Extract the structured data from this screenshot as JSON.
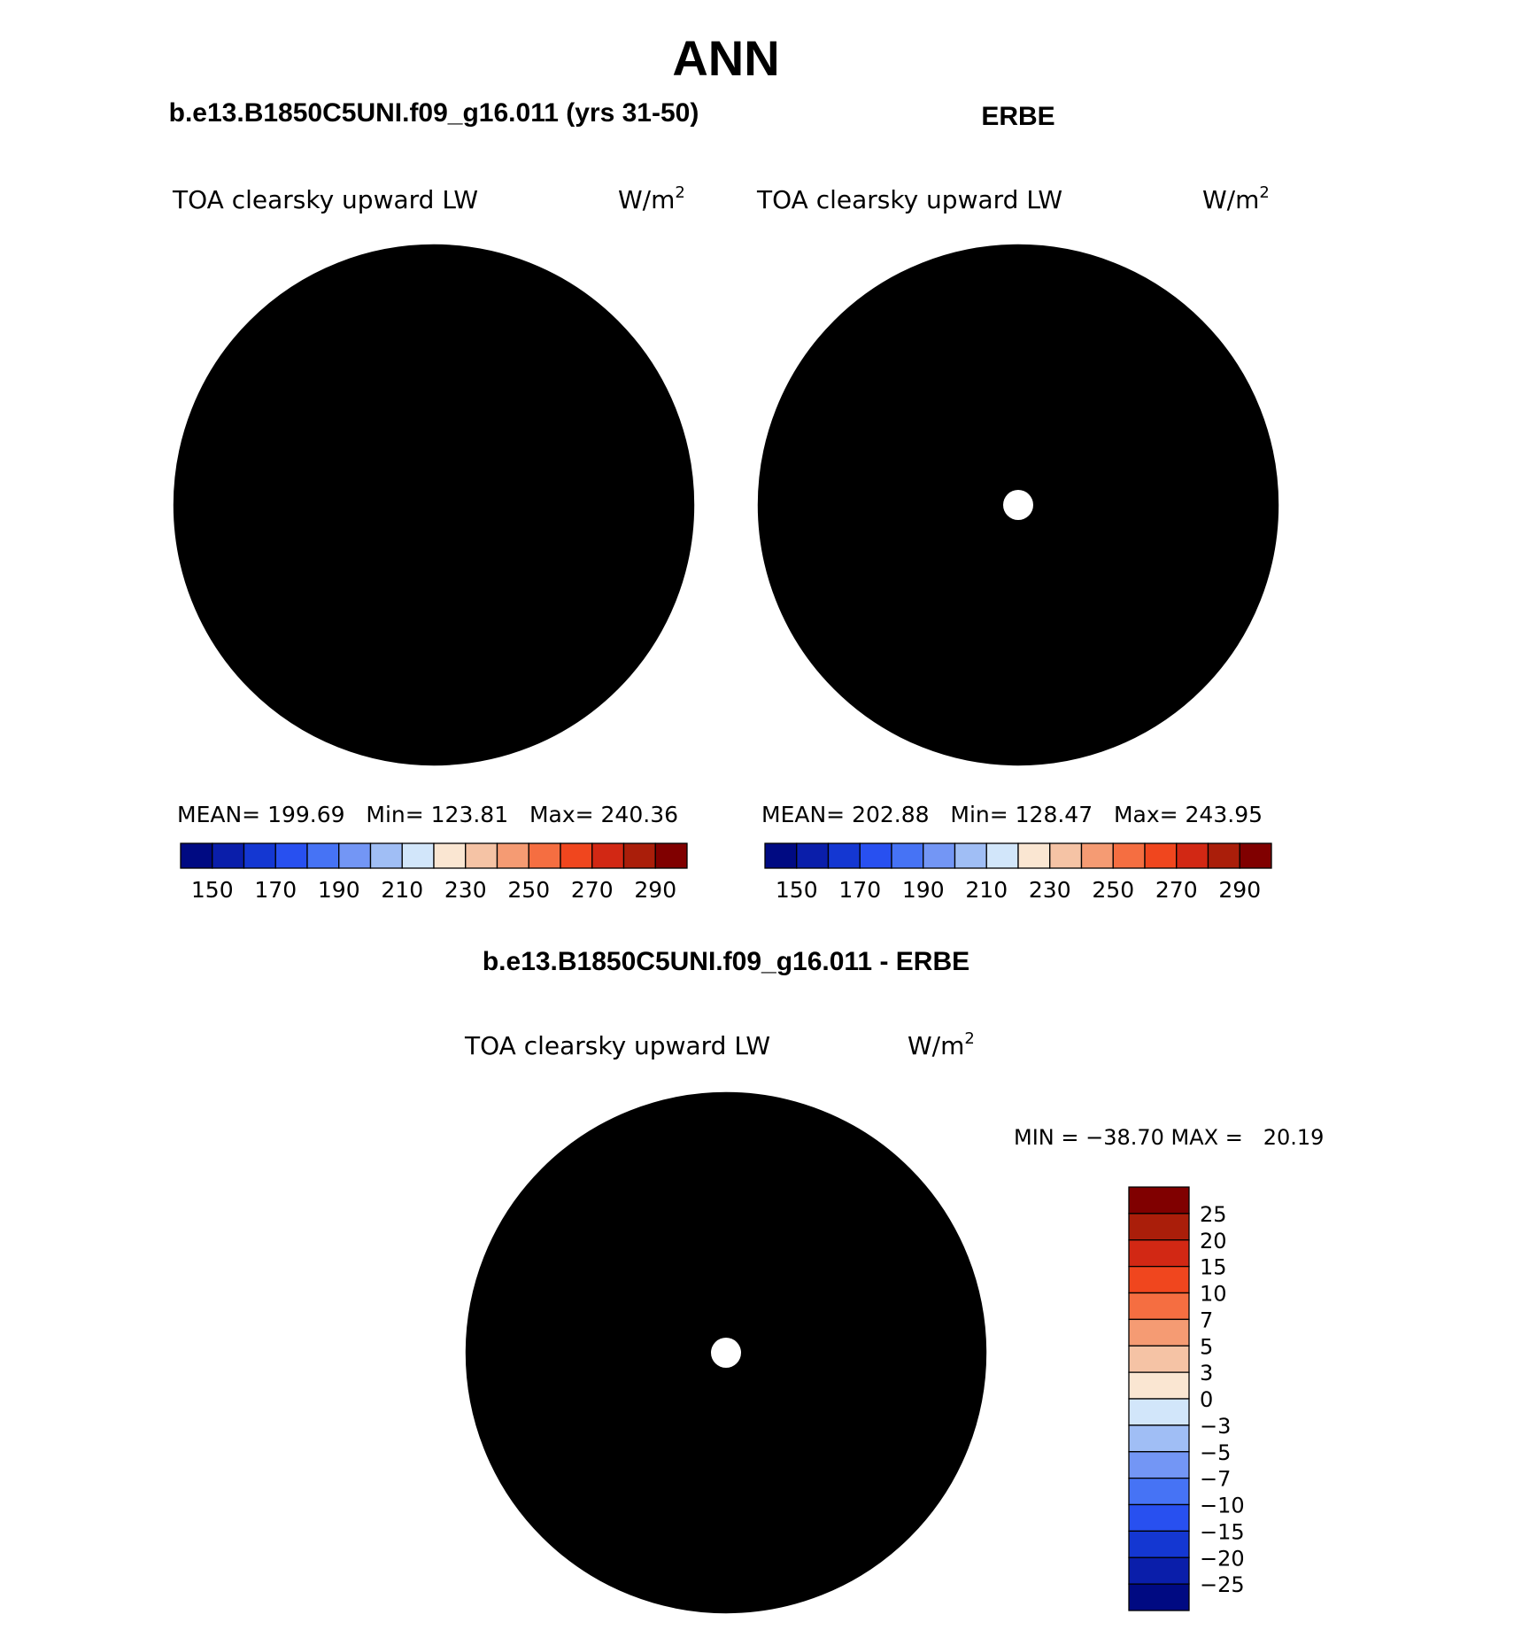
{
  "page_title": "ANN",
  "panels": {
    "model": {
      "heading": "b.e13.B1850C5UNI.f09_g16.011 (yrs 31-50)",
      "variable": "TOA clearsky upward LW",
      "units": "W/m",
      "units_sup": "2",
      "stats": "MEAN= 199.69   Min= 123.81   Max= 240.36"
    },
    "obs": {
      "heading": "ERBE",
      "variable": "TOA clearsky upward LW",
      "units": "W/m",
      "units_sup": "2",
      "stats": "MEAN= 202.88   Min= 128.47   Max= 243.95"
    },
    "diff": {
      "heading": "b.e13.B1850C5UNI.f09_g16.011 - ERBE",
      "variable": "TOA clearsky upward LW",
      "units": "W/m",
      "units_sup": "2",
      "stats": "MIN = −38.70 MAX =   20.19"
    }
  },
  "abs_colorbar": {
    "colors": [
      "#000a82",
      "#0a1eaa",
      "#1437d2",
      "#2850f0",
      "#4673f5",
      "#7396f5",
      "#a0bef5",
      "#d2e6fa",
      "#fae6d2",
      "#f5c3a5",
      "#f59b73",
      "#f56e41",
      "#f0461e",
      "#d22814",
      "#aa1e0a",
      "#800000"
    ],
    "tick_labels": [
      "150",
      "170",
      "190",
      "210",
      "230",
      "250",
      "270",
      "290"
    ]
  },
  "diff_colorbar": {
    "colors": [
      "#800000",
      "#aa1e0a",
      "#d22814",
      "#f0461e",
      "#f56e41",
      "#f59b73",
      "#f5c3a5",
      "#fae6d2",
      "#d2e6fa",
      "#a0bef5",
      "#7396f5",
      "#4673f5",
      "#2850f0",
      "#1437d2",
      "#0a1eaa",
      "#000a82"
    ],
    "tick_labels": [
      "25",
      "20",
      "15",
      "10",
      "7",
      "5",
      "3",
      "0",
      "−3",
      "−5",
      "−7",
      "−10",
      "−15",
      "−20",
      "−25"
    ]
  }
}
